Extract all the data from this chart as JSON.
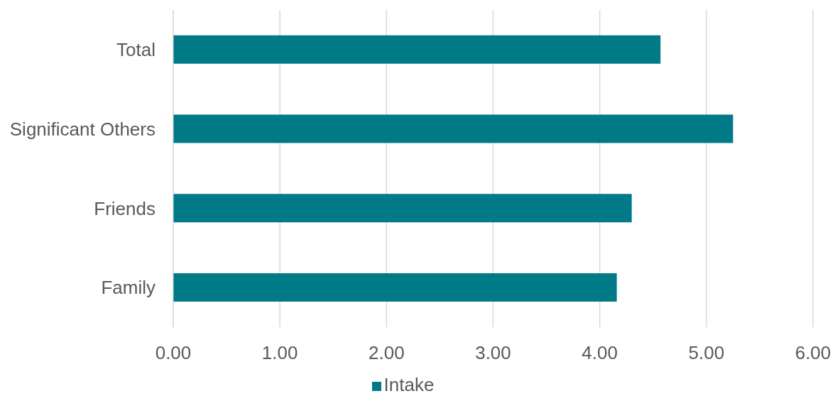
{
  "chart_data": {
    "type": "bar",
    "orientation": "horizontal",
    "categories": [
      "Total",
      "Significant Others",
      "Friends",
      "Family"
    ],
    "series": [
      {
        "name": "Intake",
        "color": "#007a87",
        "values": [
          4.57,
          5.25,
          4.3,
          4.16
        ]
      }
    ],
    "xlim": [
      0,
      6
    ],
    "xticks": [
      {
        "value": 0,
        "label": "0.00"
      },
      {
        "value": 1,
        "label": "1.00"
      },
      {
        "value": 2,
        "label": "2.00"
      },
      {
        "value": 3,
        "label": "3.00"
      },
      {
        "value": 4,
        "label": "4.00"
      },
      {
        "value": 5,
        "label": "5.00"
      },
      {
        "value": 6,
        "label": "6.00"
      }
    ],
    "grid": "x",
    "legend": "bottom"
  }
}
